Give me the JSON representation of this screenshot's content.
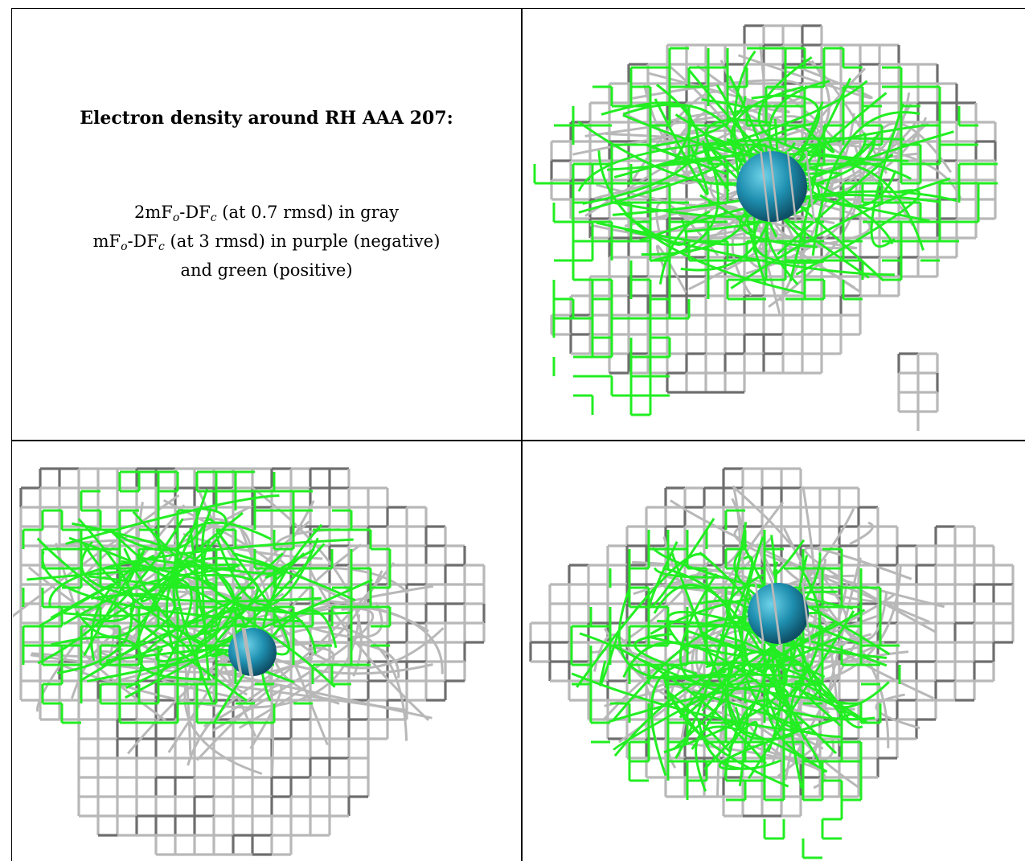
{
  "title": "Electron density around RH AAA 207:",
  "legend": {
    "line1_pre": "2mF",
    "line1_sub1": "o",
    "line1_mid": "-DF",
    "line1_sub2": "c",
    "line1_post": " (at 0.7 rmsd) in gray",
    "line2_pre": "mF",
    "line2_sub1": "o",
    "line2_mid": "-DF",
    "line2_sub2": "c",
    "line2_post": " (at 3 rmsd) in purple (negative)",
    "line3": "and green (positive)"
  },
  "colors": {
    "mesh_gray": "#b8b8b8",
    "mesh_gray_dark": "#6e6e6e",
    "mesh_green": "#22ee22",
    "atom": "#1f8fb0",
    "atom_highlight": "#6fd3ea"
  },
  "panels": [
    {
      "name": "view-top-right",
      "atom": "RH"
    },
    {
      "name": "view-bottom-left",
      "atom": "RH"
    },
    {
      "name": "view-bottom-right",
      "atom": "RH"
    }
  ]
}
